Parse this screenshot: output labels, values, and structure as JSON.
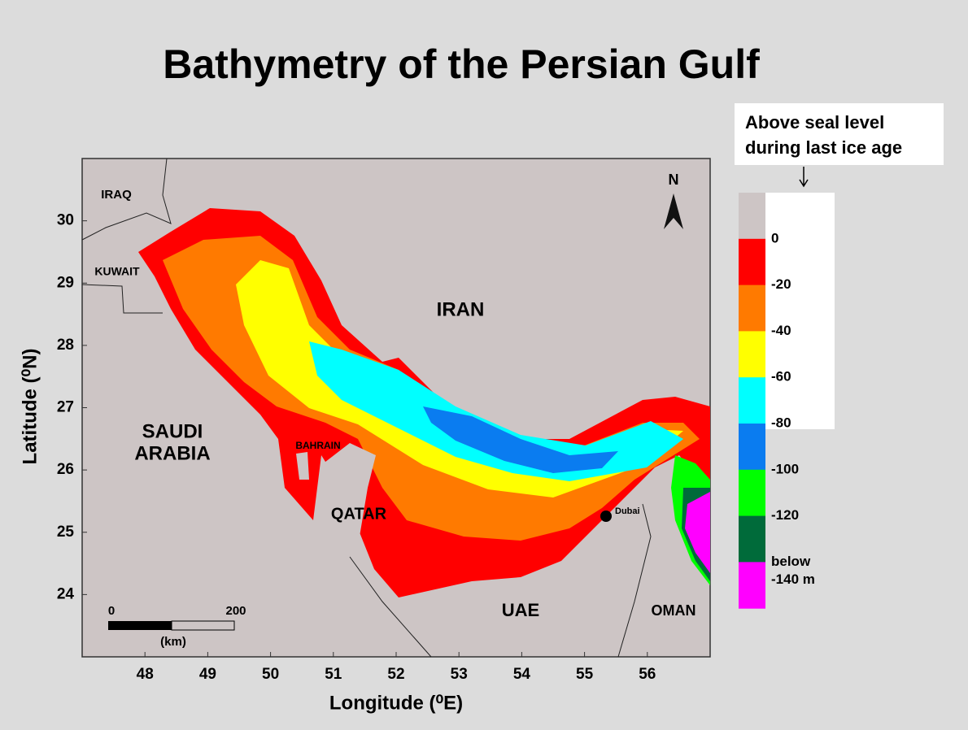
{
  "title": "Bathymetry of the Persian Gulf",
  "map": {
    "xlabel": "Longitude (⁰E)",
    "ylabel": "Latitude (⁰N)",
    "xlim": [
      47,
      57
    ],
    "ylim": [
      23,
      31
    ],
    "xticks": [
      48,
      49,
      50,
      51,
      52,
      53,
      54,
      55,
      56
    ],
    "yticks": [
      24,
      25,
      26,
      27,
      28,
      29,
      30
    ],
    "north": "N",
    "places": [
      "IRAQ",
      "KUWAIT",
      "IRAN",
      "SAUDI",
      "ARABIA",
      "BAHRAIN",
      "QATAR",
      "UAE",
      "OMAN",
      "Dubai"
    ],
    "scale_bar": [
      "0",
      "200",
      "(km)"
    ]
  },
  "legend": {
    "note": [
      "Above seal level",
      "during last ice age"
    ],
    "colors": [
      "#cdc5c5",
      "#ff0000",
      "#ff7a00",
      "#ffff00",
      "#00ffff",
      "#0a7cf0",
      "#00ff00",
      "#006b3a",
      "#ff00ff"
    ],
    "labels": [
      "0",
      "-20",
      "-40",
      "-60",
      "-80",
      "-100",
      "-120",
      "below",
      "-140 m"
    ]
  }
}
